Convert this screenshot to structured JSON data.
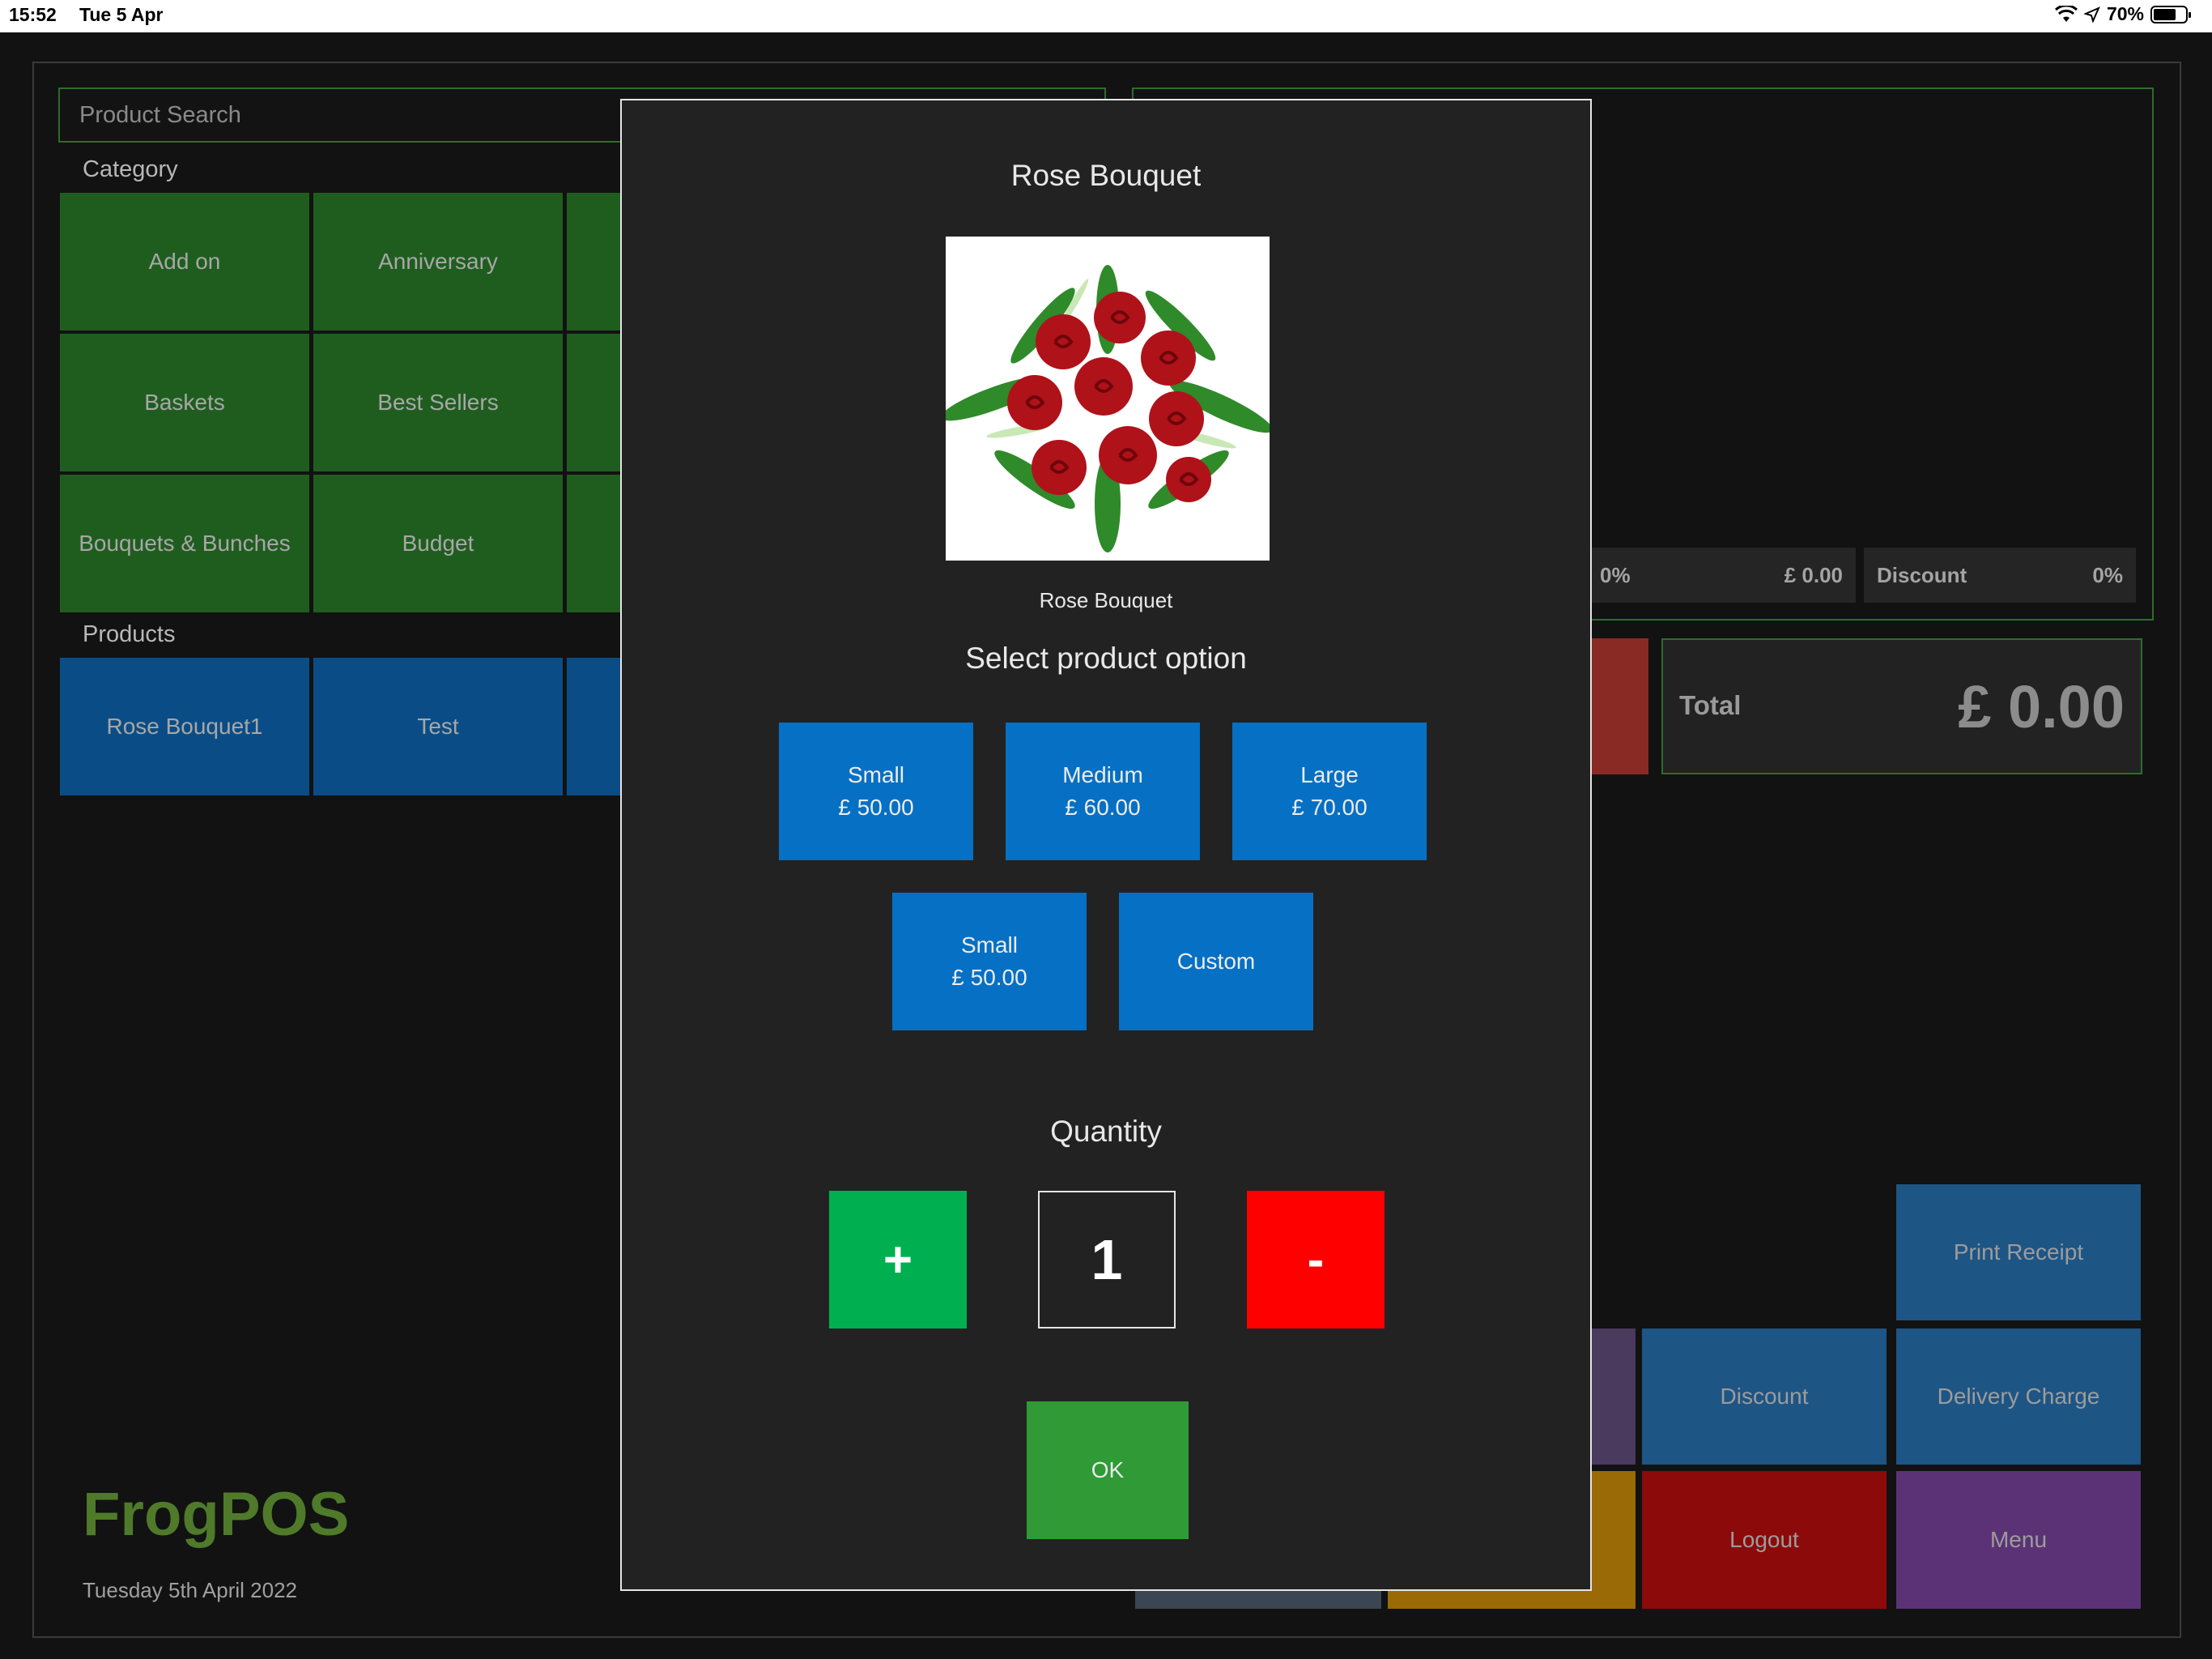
{
  "status_bar": {
    "time": "15:52",
    "date": "Tue 5 Apr",
    "battery_percent": "70%",
    "battery_level": 0.7
  },
  "left": {
    "search": {
      "placeholder": "Product Search"
    },
    "category_label": "Category",
    "categories": [
      "Add on",
      "Anniversary",
      "Baskets",
      "Best Sellers",
      "Bouquets & Bunches",
      "Budget"
    ],
    "products_label": "Products",
    "products": [
      "Rose Bouquet1",
      "Test"
    ],
    "brand": "FrogPOS",
    "date": "Tuesday 5th April 2022"
  },
  "right": {
    "tax_partial": "0%",
    "tax_amount": "£ 0.00",
    "discount_label": "Discount",
    "discount_value": "0%",
    "total_label": "Total",
    "total_value": "£ 0.00",
    "buttons": {
      "print_receipt": "Print Receipt",
      "discount": "Discount",
      "delivery_charge": "Delivery Charge",
      "logout": "Logout",
      "menu": "Menu"
    }
  },
  "modal": {
    "title": "Rose Bouquet",
    "image_caption": "Rose Bouquet",
    "select_label": "Select product option",
    "options": [
      {
        "name": "Small",
        "price": "£ 50.00"
      },
      {
        "name": "Medium",
        "price": "£ 60.00"
      },
      {
        "name": "Large",
        "price": "£ 70.00"
      },
      {
        "name": "Small",
        "price": "£ 50.00"
      },
      {
        "name": "Custom",
        "price": ""
      }
    ],
    "quantity_label": "Quantity",
    "plus": "+",
    "quantity": "1",
    "minus": "-",
    "ok": "OK"
  },
  "colors": {
    "category_tile": "#1f5d1f",
    "product_tile": "#0a4d86",
    "option_button": "#0570c4",
    "plus_button": "#00b050",
    "minus_button": "#ff0000",
    "ok_button": "#2f9a36",
    "brand_text": "#4f7a2a"
  }
}
